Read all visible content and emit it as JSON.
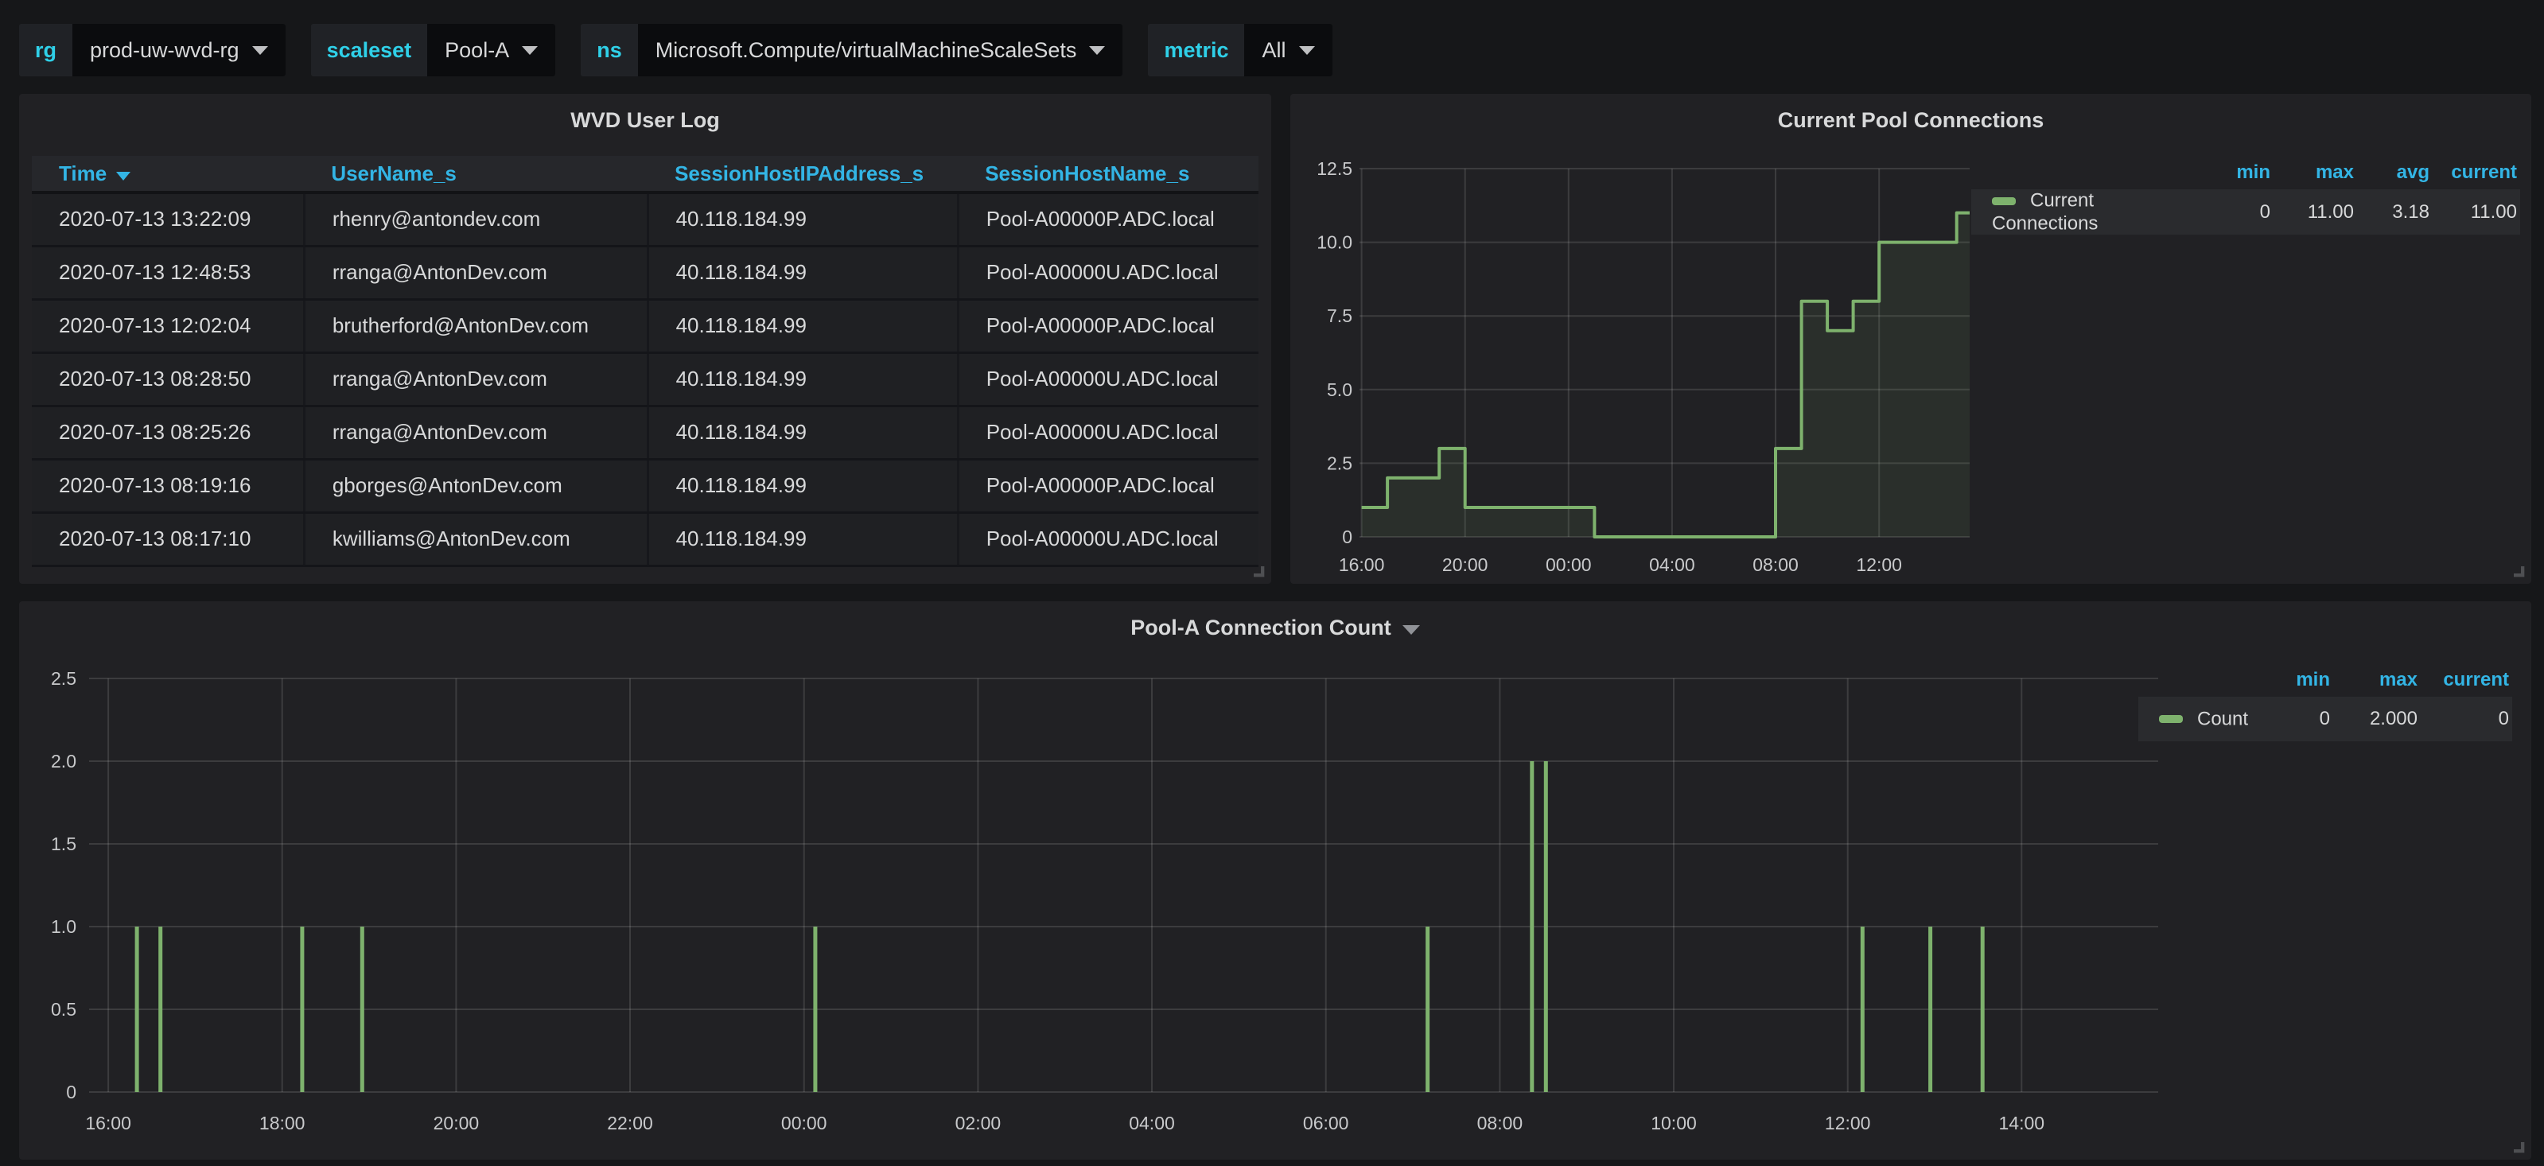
{
  "theme": {
    "page_bg": "#161719",
    "panel_bg": "#212124",
    "accent_blue": "#33b5e5",
    "accent_cyan": "#2fd0e8",
    "series_green": "#7eb26d",
    "text_primary": "#d8d9da"
  },
  "toolbar": {
    "variables": [
      {
        "label": "rg",
        "value": "prod-uw-wvd-rg"
      },
      {
        "label": "scaleset",
        "value": "Pool-A"
      },
      {
        "label": "ns",
        "value": "Microsoft.Compute/virtualMachineScaleSets"
      },
      {
        "label": "metric",
        "value": "All"
      }
    ]
  },
  "table_panel": {
    "title": "WVD User Log",
    "columns": [
      {
        "label": "Time",
        "sorted": true
      },
      {
        "label": "UserName_s",
        "sorted": false
      },
      {
        "label": "SessionHostIPAddress_s",
        "sorted": false
      },
      {
        "label": "SessionHostName_s",
        "sorted": false
      }
    ],
    "rows": [
      [
        "2020-07-13 13:22:09",
        "rhenry@antondev.com",
        "40.118.184.99",
        "Pool-A00000P.ADC.local"
      ],
      [
        "2020-07-13 12:48:53",
        "rranga@AntonDev.com",
        "40.118.184.99",
        "Pool-A00000U.ADC.local"
      ],
      [
        "2020-07-13 12:02:04",
        "brutherford@AntonDev.com",
        "40.118.184.99",
        "Pool-A00000P.ADC.local"
      ],
      [
        "2020-07-13 08:28:50",
        "rranga@AntonDev.com",
        "40.118.184.99",
        "Pool-A00000U.ADC.local"
      ],
      [
        "2020-07-13 08:25:26",
        "rranga@AntonDev.com",
        "40.118.184.99",
        "Pool-A00000U.ADC.local"
      ],
      [
        "2020-07-13 08:19:16",
        "gborges@AntonDev.com",
        "40.118.184.99",
        "Pool-A00000P.ADC.local"
      ],
      [
        "2020-07-13 08:17:10",
        "kwilliams@AntonDev.com",
        "40.118.184.99",
        "Pool-A00000U.ADC.local"
      ]
    ]
  },
  "chart_data": [
    {
      "id": "pool-connections",
      "type": "area",
      "render": "step-area",
      "title": "Current Pool Connections",
      "series_name": "Current Connections",
      "color": "#7eb26d",
      "fill_opacity": 0.1,
      "grid": true,
      "legend_position": "right",
      "x_domain_hours": [
        15.92,
        39.5
      ],
      "x_ticks": [
        {
          "h": 16,
          "label": "16:00"
        },
        {
          "h": 20,
          "label": "20:00"
        },
        {
          "h": 24,
          "label": "00:00"
        },
        {
          "h": 28,
          "label": "04:00"
        },
        {
          "h": 32,
          "label": "08:00"
        },
        {
          "h": 36,
          "label": "12:00"
        }
      ],
      "y_ticks": [
        {
          "v": 0,
          "label": "0"
        },
        {
          "v": 2.5,
          "label": "2.5"
        },
        {
          "v": 5,
          "label": "5.0"
        },
        {
          "v": 7.5,
          "label": "7.5"
        },
        {
          "v": 10,
          "label": "10.0"
        },
        {
          "v": 12.5,
          "label": "12.5"
        }
      ],
      "y_max": 12.5,
      "steps": [
        {
          "h": 16,
          "time": "16:00",
          "value": 1
        },
        {
          "h": 17,
          "time": "17:00",
          "value": 2
        },
        {
          "h": 19,
          "time": "19:00",
          "value": 3
        },
        {
          "h": 20,
          "time": "20:00",
          "value": 1
        },
        {
          "h": 25,
          "time": "01:00",
          "value": 0
        },
        {
          "h": 32,
          "time": "08:00",
          "value": 3
        },
        {
          "h": 33,
          "time": "09:00",
          "value": 8
        },
        {
          "h": 34,
          "time": "10:00",
          "value": 7
        },
        {
          "h": 35,
          "time": "11:00",
          "value": 8
        },
        {
          "h": 36,
          "time": "12:00",
          "value": 10
        },
        {
          "h": 39,
          "time": "15:00",
          "value": 11
        }
      ],
      "legend": {
        "headers": [
          "min",
          "max",
          "avg",
          "current"
        ],
        "rows": [
          {
            "name": "Current Connections",
            "values": [
              "0",
              "11.00",
              "3.18",
              "11.00"
            ]
          }
        ]
      }
    },
    {
      "id": "connection-count",
      "type": "bar",
      "title": "Pool-A Connection Count",
      "series_name": "Count",
      "color": "#7eb26d",
      "grid": true,
      "legend_position": "right",
      "x_domain_hours": [
        15.78,
        39.57
      ],
      "x_ticks": [
        {
          "h": 16,
          "label": "16:00"
        },
        {
          "h": 18,
          "label": "18:00"
        },
        {
          "h": 20,
          "label": "20:00"
        },
        {
          "h": 22,
          "label": "22:00"
        },
        {
          "h": 24,
          "label": "00:00"
        },
        {
          "h": 26,
          "label": "02:00"
        },
        {
          "h": 28,
          "label": "04:00"
        },
        {
          "h": 30,
          "label": "06:00"
        },
        {
          "h": 32,
          "label": "08:00"
        },
        {
          "h": 34,
          "label": "10:00"
        },
        {
          "h": 36,
          "label": "12:00"
        },
        {
          "h": 38,
          "label": "14:00"
        }
      ],
      "y_ticks": [
        {
          "v": 0,
          "label": "0"
        },
        {
          "v": 0.5,
          "label": "0.5"
        },
        {
          "v": 1,
          "label": "1.0"
        },
        {
          "v": 1.5,
          "label": "1.5"
        },
        {
          "v": 2,
          "label": "2.0"
        },
        {
          "v": 2.5,
          "label": "2.5"
        }
      ],
      "y_max": 2.5,
      "bars": [
        {
          "h": 16.33,
          "time": "16:20",
          "value": 1
        },
        {
          "h": 16.6,
          "time": "16:36",
          "value": 1
        },
        {
          "h": 18.23,
          "time": "18:14",
          "value": 1
        },
        {
          "h": 18.92,
          "time": "18:55",
          "value": 1
        },
        {
          "h": 24.13,
          "time": "00:08",
          "value": 1
        },
        {
          "h": 31.17,
          "time": "07:10",
          "value": 1
        },
        {
          "h": 32.37,
          "time": "08:22",
          "value": 2
        },
        {
          "h": 32.53,
          "time": "08:32",
          "value": 2
        },
        {
          "h": 36.17,
          "time": "12:10",
          "value": 1
        },
        {
          "h": 36.95,
          "time": "12:57",
          "value": 1
        },
        {
          "h": 37.55,
          "time": "13:33",
          "value": 1
        }
      ],
      "legend": {
        "headers": [
          "min",
          "max",
          "current"
        ],
        "rows": [
          {
            "name": "Count",
            "values": [
              "0",
              "2.000",
              "0"
            ]
          }
        ]
      }
    }
  ]
}
